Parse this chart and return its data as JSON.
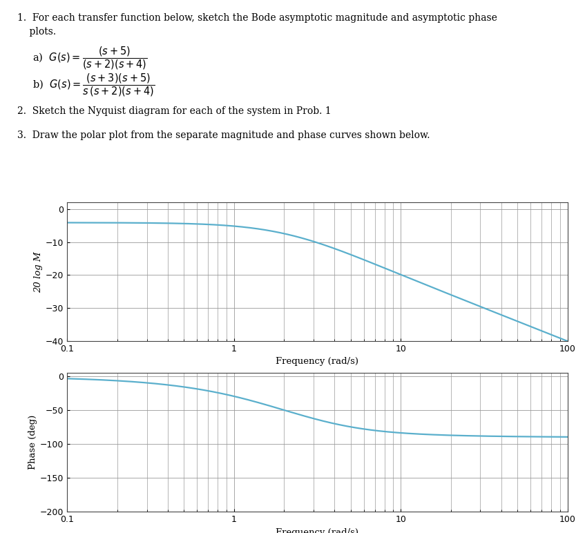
{
  "freq_range": [
    0.1,
    100
  ],
  "mag_ylim": [
    -40,
    2
  ],
  "phase_ylim": [
    -200,
    5
  ],
  "mag_yticks": [
    0,
    -10,
    -20,
    -30,
    -40
  ],
  "phase_yticks": [
    0,
    -50,
    -100,
    -150,
    -200
  ],
  "xlabel": "Frequency (rad/s)",
  "mag_ylabel": "20 log M",
  "phase_ylabel": "Phase (deg)",
  "line_color": "#5aafcc",
  "line_width": 1.6,
  "background_color": "#ffffff",
  "text_color": "#000000",
  "grid_color": "#999999",
  "title_color": "#cc2200",
  "fig_width": 8.47,
  "fig_height": 7.72,
  "fig_dpi": 100
}
